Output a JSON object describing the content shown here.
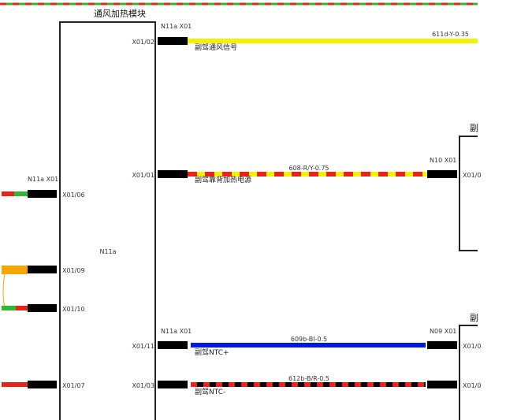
{
  "module": {
    "title": "通风加热模块",
    "label": "N11a"
  },
  "left_connectors": [
    {
      "header": "N11a X01",
      "pin": "X01/06"
    },
    {
      "pin": "X01/09"
    },
    {
      "pin": "X01/10"
    },
    {
      "pin": "X01/07"
    }
  ],
  "circuits": [
    {
      "header": "N11a X01",
      "pin": "X01/02",
      "signal": "副驾通风信号",
      "wire": "611d-Y-0.35",
      "end_pin": null
    },
    {
      "pin": "X01/01",
      "signal": "副驾靠背加热电源",
      "wire": "608-R/Y-0.75",
      "end_header": "N10 X01",
      "end_pin": "X01/0",
      "end_device": "副"
    },
    {
      "header": "N11a X01",
      "pin": "X01/11",
      "signal": "副驾NTC+",
      "wire": "609b-Bl-0.5",
      "end_header": "N09 X01",
      "end_pin": "X01/0",
      "end_device": "副"
    },
    {
      "pin": "X01/03",
      "signal": "副驾NTC-",
      "wire": "612b-B/R-0.5",
      "end_pin": "X01/0"
    }
  ]
}
